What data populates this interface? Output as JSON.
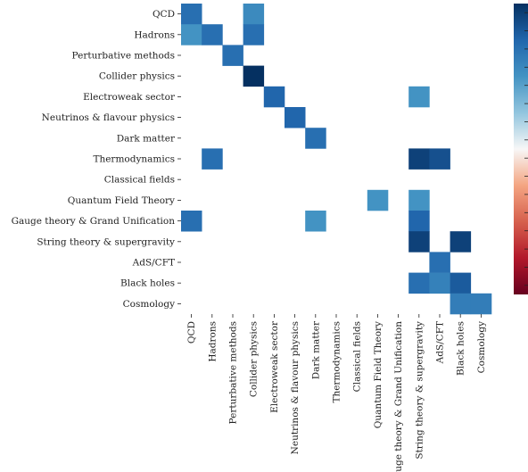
{
  "chart_data": {
    "type": "heatmap",
    "categories": [
      "QCD",
      "Hadrons",
      "Perturbative methods",
      "Collider physics",
      "Electroweak sector",
      "Neutrinos & flavour physics",
      "Dark matter",
      "Thermodynamics",
      "Classical fields",
      "Quantum Field Theory",
      "Gauge theory & Grand Unification",
      "String theory & supergravity",
      "AdS/CFT",
      "Black holes",
      "Cosmology"
    ],
    "cells": [
      {
        "row": 0,
        "col": 0,
        "value": 0.7
      },
      {
        "row": 0,
        "col": 3,
        "value": 0.55
      },
      {
        "row": 1,
        "col": 0,
        "value": 0.5
      },
      {
        "row": 1,
        "col": 1,
        "value": 0.7
      },
      {
        "row": 1,
        "col": 3,
        "value": 0.7
      },
      {
        "row": 2,
        "col": 2,
        "value": 0.7
      },
      {
        "row": 3,
        "col": 3,
        "value": 1.0
      },
      {
        "row": 4,
        "col": 4,
        "value": 0.75
      },
      {
        "row": 4,
        "col": 11,
        "value": 0.5
      },
      {
        "row": 5,
        "col": 5,
        "value": 0.75
      },
      {
        "row": 6,
        "col": 6,
        "value": 0.7
      },
      {
        "row": 7,
        "col": 1,
        "value": 0.7
      },
      {
        "row": 7,
        "col": 11,
        "value": 0.92
      },
      {
        "row": 7,
        "col": 12,
        "value": 0.85
      },
      {
        "row": 9,
        "col": 9,
        "value": 0.5
      },
      {
        "row": 9,
        "col": 11,
        "value": 0.5
      },
      {
        "row": 10,
        "col": 0,
        "value": 0.7
      },
      {
        "row": 10,
        "col": 6,
        "value": 0.5
      },
      {
        "row": 10,
        "col": 11,
        "value": 0.75
      },
      {
        "row": 11,
        "col": 11,
        "value": 0.92
      },
      {
        "row": 11,
        "col": 13,
        "value": 0.92
      },
      {
        "row": 12,
        "col": 12,
        "value": 0.7
      },
      {
        "row": 13,
        "col": 11,
        "value": 0.7
      },
      {
        "row": 13,
        "col": 12,
        "value": 0.6
      },
      {
        "row": 13,
        "col": 13,
        "value": 0.8
      },
      {
        "row": 14,
        "col": 13,
        "value": 0.62
      },
      {
        "row": 14,
        "col": 14,
        "value": 0.62
      }
    ],
    "vlim": [
      -1,
      1
    ],
    "colormap": "RdBu",
    "colorbar": true,
    "title": "",
    "xlabel": "",
    "ylabel": ""
  }
}
